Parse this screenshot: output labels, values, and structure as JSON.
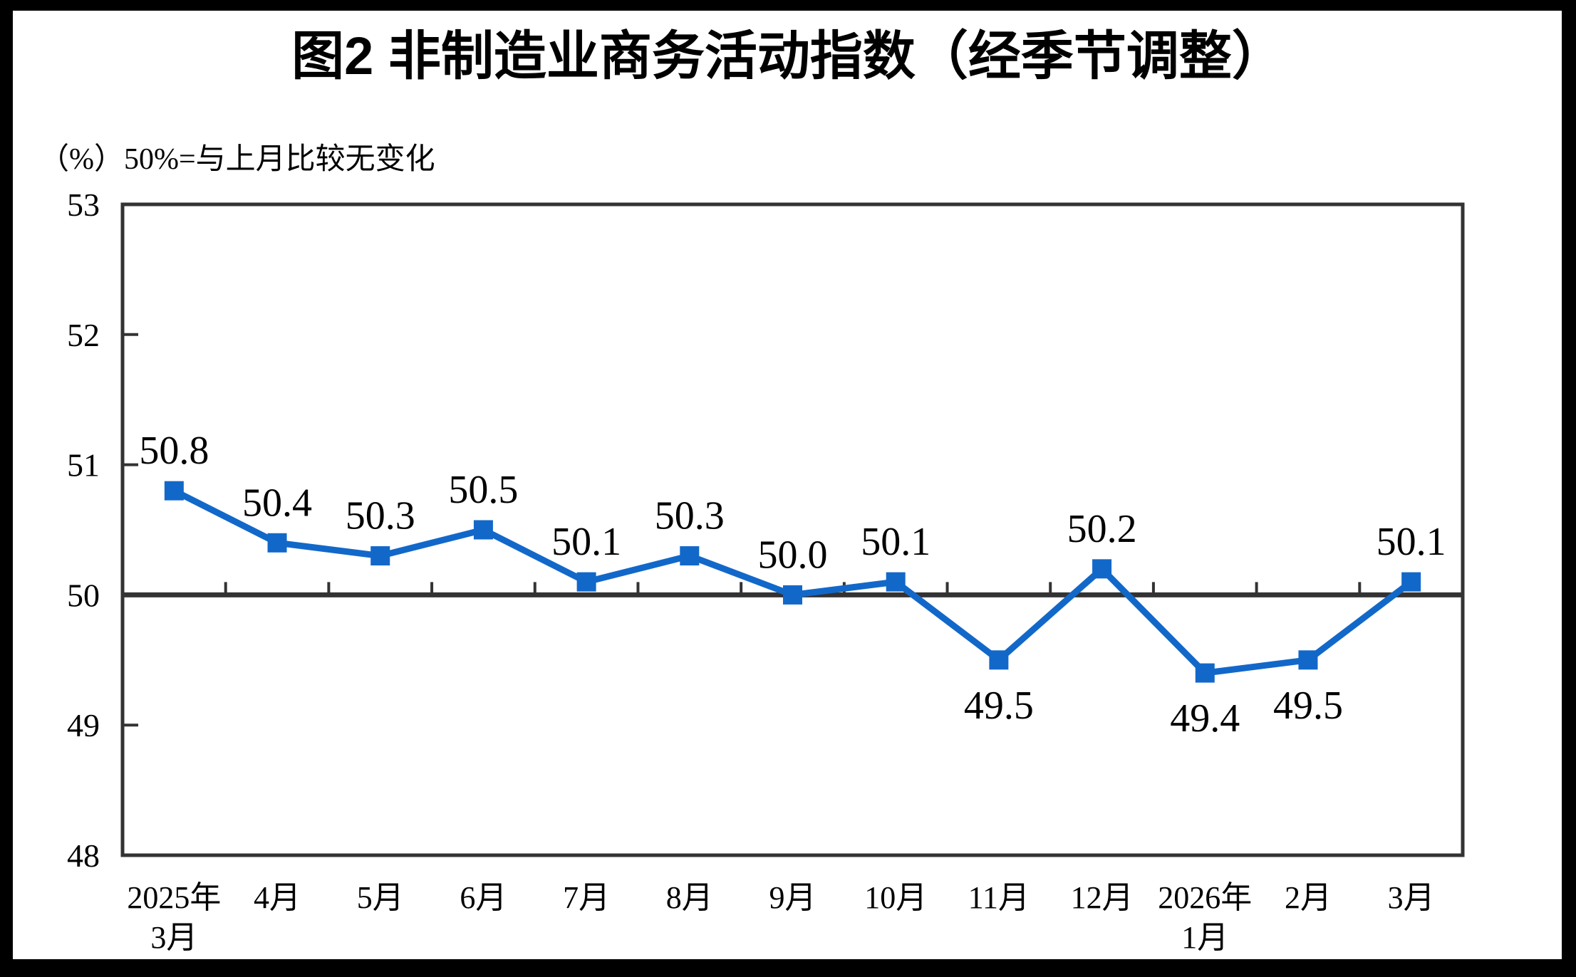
{
  "colors": {
    "background": "#FFFFFF",
    "frame": "#000000",
    "line": "#1268C9",
    "axis": "#333333",
    "text": "#000000"
  },
  "chart_data": {
    "type": "line",
    "title": "图2  非制造业商务活动指数（经季节调整）",
    "subtitle": "（%）50%=与上月比较无变化",
    "categories": [
      "2025年\n3月",
      "4月",
      "5月",
      "6月",
      "7月",
      "8月",
      "9月",
      "10月",
      "11月",
      "12月",
      "2026年\n1月",
      "2月",
      "3月"
    ],
    "values": [
      50.8,
      50.4,
      50.3,
      50.5,
      50.1,
      50.3,
      50.0,
      50.1,
      49.5,
      50.2,
      49.4,
      49.5,
      50.1
    ],
    "data_labels": [
      "50.8",
      "50.4",
      "50.3",
      "50.5",
      "50.1",
      "50.3",
      "50.0",
      "50.1",
      "49.5",
      "50.2",
      "49.4",
      "49.5",
      "50.1"
    ],
    "label_position": [
      "above",
      "above",
      "above",
      "above",
      "above",
      "above",
      "above",
      "above",
      "below",
      "above",
      "below",
      "below",
      "above"
    ],
    "ylim": [
      48,
      53
    ],
    "y_ticks": [
      48,
      49,
      50,
      51,
      52,
      53
    ],
    "reference_line": 50,
    "grid": false,
    "legend": false,
    "marker": "square",
    "xlabel": "",
    "ylabel": "（%）"
  }
}
